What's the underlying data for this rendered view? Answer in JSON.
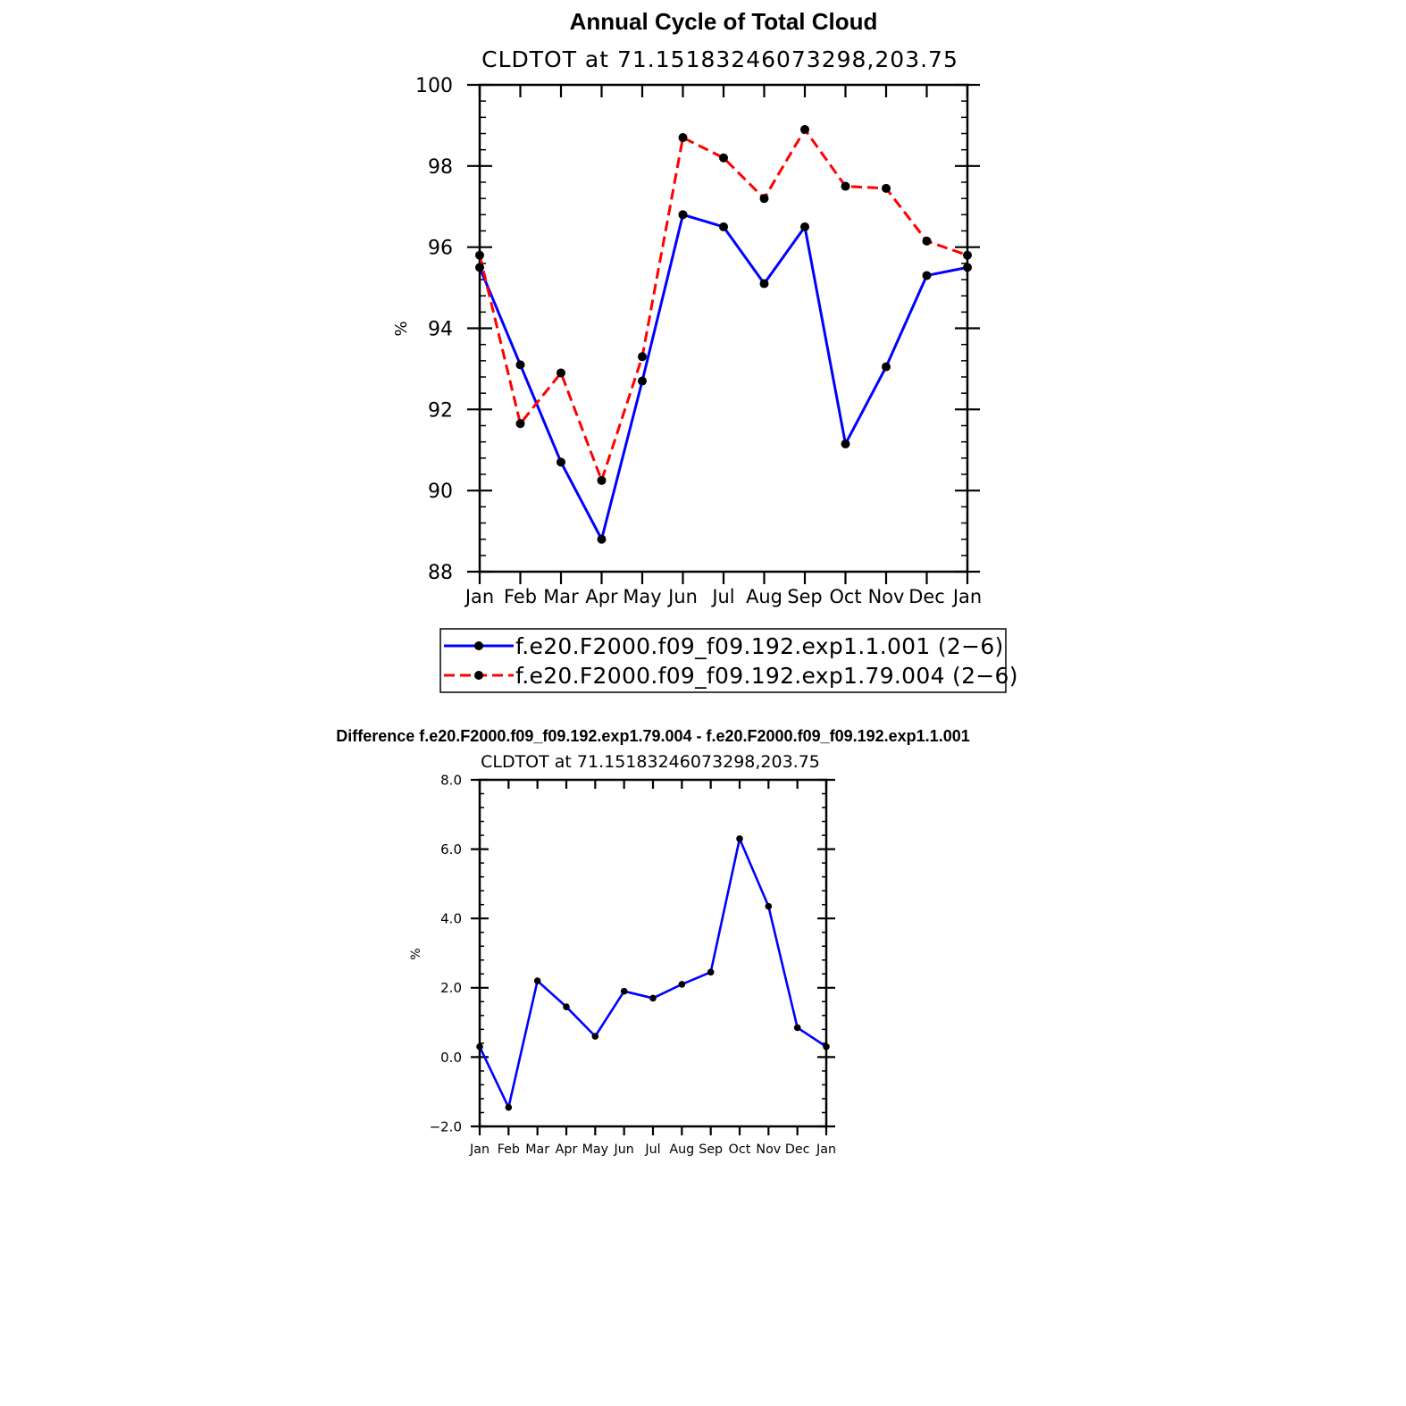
{
  "chart_data": [
    {
      "type": "line",
      "title": "Annual Cycle of Total Cloud",
      "subtitle": "CLDTOT at 71.15183246073298,203.75",
      "ylabel": "%",
      "xlabel": "",
      "categories": [
        "Jan",
        "Feb",
        "Mar",
        "Apr",
        "May",
        "Jun",
        "Jul",
        "Aug",
        "Sep",
        "Oct",
        "Nov",
        "Dec",
        "Jan"
      ],
      "ylim": [
        88,
        100
      ],
      "yticks": [
        "88",
        "90",
        "92",
        "94",
        "96",
        "98",
        "100"
      ],
      "series": [
        {
          "name": "f.e20.F2000.f09_f09.192.exp1.1.001 (2−6)",
          "color": "#0000ff",
          "style": "solid",
          "values": [
            95.5,
            93.1,
            90.7,
            88.8,
            92.7,
            96.8,
            96.5,
            95.1,
            96.5,
            91.15,
            93.05,
            95.3,
            95.5
          ]
        },
        {
          "name": "f.e20.F2000.f09_f09.192.exp1.79.004 (2−6)",
          "color": "#ff0000",
          "style": "dashed",
          "values": [
            95.8,
            91.65,
            92.9,
            90.25,
            93.3,
            98.7,
            98.2,
            97.2,
            98.9,
            97.5,
            97.45,
            96.15,
            95.8
          ]
        }
      ],
      "legend": "bottom"
    },
    {
      "type": "line",
      "title": "Difference f.e20.F2000.f09_f09.192.exp1.79.004 - f.e20.F2000.f09_f09.192.exp1.1.001",
      "subtitle": "CLDTOT at 71.15183246073298,203.75",
      "ylabel": "%",
      "xlabel": "",
      "categories": [
        "Jan",
        "Feb",
        "Mar",
        "Apr",
        "May",
        "Jun",
        "Jul",
        "Aug",
        "Sep",
        "Oct",
        "Nov",
        "Dec",
        "Jan"
      ],
      "ylim": [
        -2,
        8
      ],
      "yticks": [
        "−2.0",
        "0.0",
        "2.0",
        "4.0",
        "6.0",
        "8.0"
      ],
      "series": [
        {
          "color": "#0000ff",
          "style": "solid",
          "values": [
            0.3,
            -1.45,
            2.2,
            1.45,
            0.6,
            1.9,
            1.7,
            2.1,
            2.45,
            6.3,
            4.35,
            0.85,
            0.3
          ]
        }
      ]
    }
  ]
}
